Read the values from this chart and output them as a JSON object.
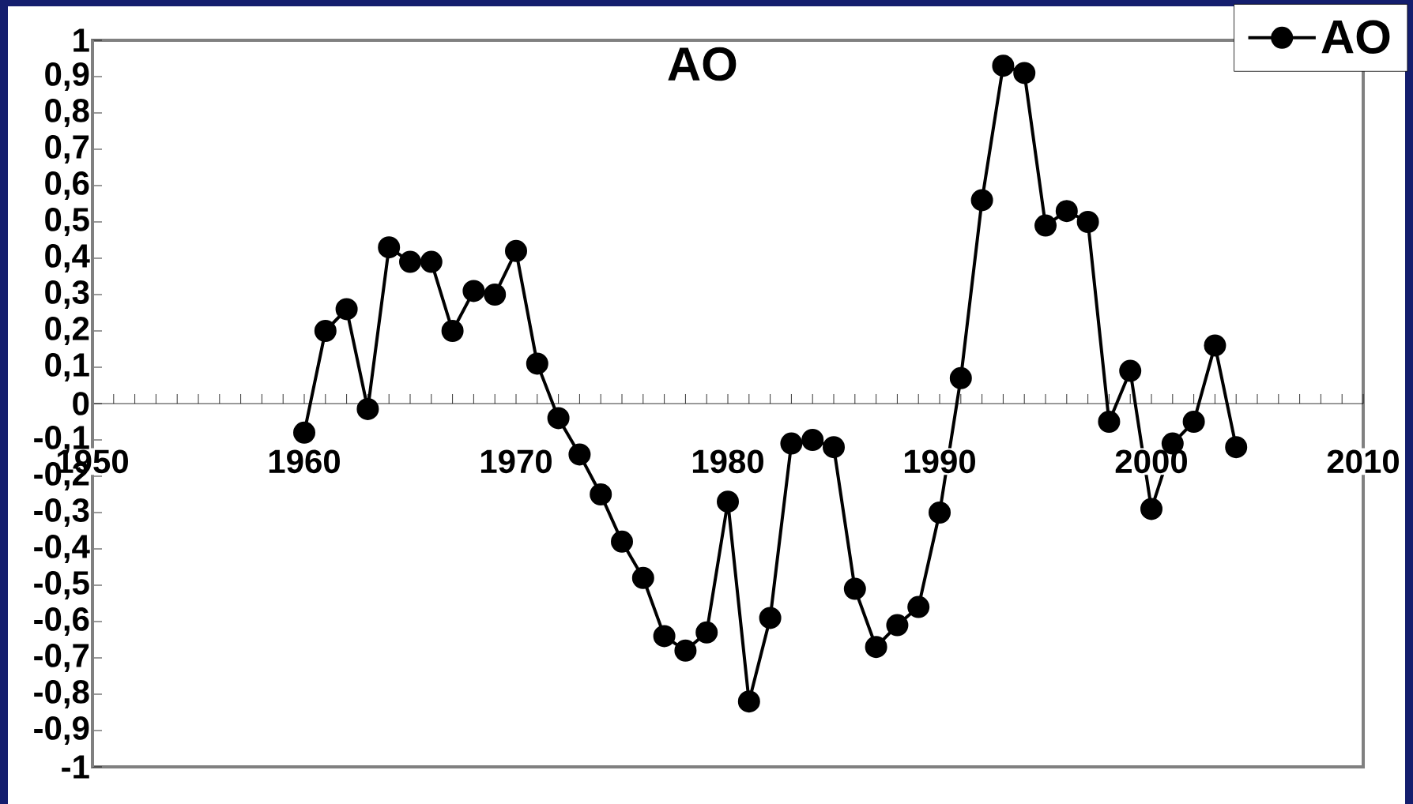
{
  "chart_data": {
    "type": "line",
    "title": "AO",
    "x": [
      1960,
      1961,
      1962,
      1963,
      1964,
      1965,
      1966,
      1967,
      1968,
      1969,
      1970,
      1971,
      1972,
      1973,
      1974,
      1975,
      1976,
      1977,
      1978,
      1979,
      1980,
      1981,
      1982,
      1983,
      1984,
      1985,
      1986,
      1987,
      1988,
      1989,
      1990,
      1991,
      1992,
      1993,
      1994,
      1995,
      1996,
      1997,
      1998,
      1999,
      2000,
      2001,
      2002,
      2003,
      2004
    ],
    "series": [
      {
        "name": "AO",
        "color": "#000000",
        "values": [
          -0.08,
          0.2,
          0.26,
          -0.015,
          0.43,
          0.39,
          0.39,
          0.2,
          0.31,
          0.3,
          0.42,
          0.11,
          -0.04,
          -0.14,
          -0.25,
          -0.38,
          -0.48,
          -0.64,
          -0.68,
          -0.63,
          -0.27,
          -0.82,
          -0.59,
          -0.11,
          -0.1,
          -0.12,
          -0.51,
          -0.67,
          -0.61,
          -0.56,
          -0.3,
          0.07,
          0.56,
          0.93,
          0.91,
          0.49,
          0.53,
          0.5,
          -0.05,
          0.09,
          -0.29,
          -0.11,
          -0.05,
          0.16,
          -0.12
        ]
      }
    ],
    "xlim": [
      1950,
      2010
    ],
    "xticks": [
      1950,
      1960,
      1970,
      1980,
      1990,
      2000,
      2010
    ],
    "ylim": [
      -1,
      1
    ],
    "yticks": [
      {
        "value": -1,
        "label": "-1"
      },
      {
        "value": -0.9,
        "label": "-0,9"
      },
      {
        "value": -0.8,
        "label": "-0,8"
      },
      {
        "value": -0.7,
        "label": "-0,7"
      },
      {
        "value": -0.6,
        "label": "-0,6"
      },
      {
        "value": -0.5,
        "label": "-0,5"
      },
      {
        "value": -0.4,
        "label": "-0,4"
      },
      {
        "value": -0.3,
        "label": "-0,3"
      },
      {
        "value": -0.2,
        "label": "-0,2"
      },
      {
        "value": -0.1,
        "label": "-0,1"
      },
      {
        "value": 0,
        "label": "0"
      },
      {
        "value": 0.1,
        "label": "0,1"
      },
      {
        "value": 0.2,
        "label": "0,2"
      },
      {
        "value": 0.3,
        "label": "0,3"
      },
      {
        "value": 0.4,
        "label": "0,4"
      },
      {
        "value": 0.5,
        "label": "0,5"
      },
      {
        "value": 0.6,
        "label": "0,6"
      },
      {
        "value": 0.7,
        "label": "0,7"
      },
      {
        "value": 0.8,
        "label": "0,8"
      },
      {
        "value": 0.9,
        "label": "0,9"
      },
      {
        "value": 1,
        "label": "1"
      }
    ],
    "legend": "top right",
    "marker": "circle",
    "line_style": "solid"
  }
}
